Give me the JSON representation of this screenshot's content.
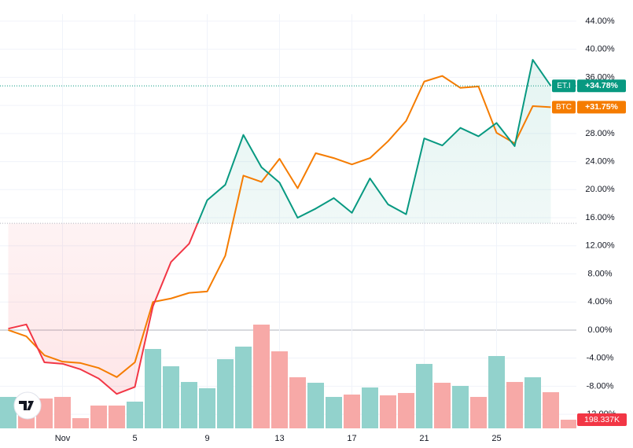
{
  "chart_data": {
    "type": "baseline",
    "categories": [
      null,
      null,
      null,
      "Nov",
      null,
      null,
      null,
      "5",
      null,
      null,
      null,
      "9",
      null,
      null,
      null,
      "13",
      null,
      null,
      null,
      "17",
      null,
      null,
      null,
      "21",
      null,
      null,
      null,
      "25",
      null,
      null,
      null,
      null
    ],
    "series": [
      {
        "name": "ET.I",
        "color": "#089981",
        "below_color": "#f23645",
        "values": [
          0.2,
          0.8,
          -4.6,
          -4.8,
          -5.6,
          -6.9,
          -9.1,
          -8.1,
          3.4,
          9.7,
          12.3,
          18.5,
          20.7,
          27.8,
          23.2,
          21.0,
          16.0,
          17.3,
          18.8,
          16.7,
          21.6,
          17.9,
          16.5,
          27.3,
          26.3,
          28.8,
          27.6,
          29.5,
          26.2,
          38.5,
          34.78,
          null
        ],
        "value_labels": [
          null,
          null,
          null,
          null,
          null,
          null,
          null,
          null,
          null,
          null,
          null,
          null,
          null,
          null,
          null,
          null,
          null,
          null,
          null,
          null,
          null,
          null,
          null,
          null,
          null,
          null,
          null,
          null,
          null,
          null,
          "+34.78%",
          null
        ]
      },
      {
        "name": "BTC",
        "color": "#f57c00",
        "values": [
          0,
          -0.9,
          -3.6,
          -4.5,
          -4.7,
          -5.4,
          -6.7,
          -4.6,
          4.0,
          4.5,
          5.3,
          5.5,
          10.6,
          22.0,
          21.1,
          24.4,
          20.2,
          25.2,
          24.5,
          23.6,
          24.5,
          26.9,
          29.8,
          35.4,
          36.2,
          34.5,
          34.7,
          28.1,
          26.6,
          31.9,
          31.75,
          null
        ],
        "value_labels": [
          null,
          null,
          null,
          null,
          null,
          null,
          null,
          null,
          null,
          null,
          null,
          null,
          null,
          null,
          null,
          null,
          null,
          null,
          null,
          null,
          null,
          null,
          null,
          null,
          null,
          null,
          null,
          null,
          null,
          null,
          "+31.75%",
          null
        ]
      }
    ],
    "baseline": 15.2,
    "ylim": [
      -14,
      45
    ],
    "yticks": [
      {
        "value": 44,
        "label": "44.00%"
      },
      {
        "value": 40,
        "label": "40.00%"
      },
      {
        "value": 36,
        "label": "36.00%"
      },
      {
        "value": 32,
        "label": "32.00%"
      },
      {
        "value": 28,
        "label": "28.00%"
      },
      {
        "value": 24,
        "label": "24.00%"
      },
      {
        "value": 20,
        "label": "20.00%"
      },
      {
        "value": 16,
        "label": "16.00%"
      },
      {
        "value": 12,
        "label": "12.00%"
      },
      {
        "value": 8,
        "label": "8.00%"
      },
      {
        "value": 4,
        "label": "4.00%"
      },
      {
        "value": 0,
        "label": "0.00%"
      },
      {
        "value": -4,
        "label": "-4.00%"
      },
      {
        "value": -8,
        "label": "-8.00%"
      },
      {
        "value": -12,
        "label": "-12.00%"
      }
    ],
    "grid": true,
    "volume": {
      "values": [
        721000,
        685000,
        685000,
        721000,
        234000,
        523000,
        523000,
        613000,
        1821000,
        1424000,
        1064000,
        920000,
        1587000,
        1875000,
        2380000,
        1767000,
        1172000,
        1046000,
        721000,
        775000,
        938000,
        757000,
        811000,
        1478000,
        1046000,
        974000,
        721000,
        1659000,
        1064000,
        1172000,
        829000,
        198337
      ],
      "colors": [
        "#92d2cc",
        "#f7a9a7",
        "#f7a9a7",
        "#f7a9a7",
        "#f7a9a7",
        "#f7a9a7",
        "#f7a9a7",
        "#92d2cc",
        "#92d2cc",
        "#92d2cc",
        "#92d2cc",
        "#92d2cc",
        "#92d2cc",
        "#92d2cc",
        "#f7a9a7",
        "#f7a9a7",
        "#f7a9a7",
        "#92d2cc",
        "#92d2cc",
        "#f7a9a7",
        "#92d2cc",
        "#f7a9a7",
        "#f7a9a7",
        "#92d2cc",
        "#f7a9a7",
        "#92d2cc",
        "#f7a9a7",
        "#92d2cc",
        "#f7a9a7",
        "#92d2cc",
        "#f7a9a7",
        "#f7a9a7"
      ],
      "value_labels": [
        null,
        null,
        null,
        null,
        null,
        null,
        null,
        null,
        null,
        null,
        null,
        null,
        null,
        null,
        null,
        null,
        null,
        null,
        null,
        null,
        null,
        null,
        null,
        null,
        null,
        null,
        null,
        null,
        null,
        null,
        null,
        "198.337K"
      ]
    }
  }
}
